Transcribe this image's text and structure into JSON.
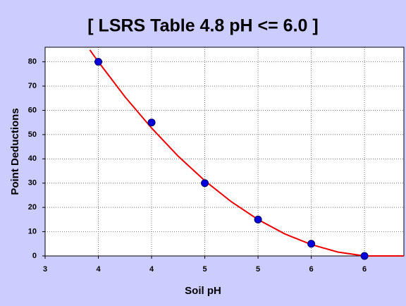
{
  "chart_data": {
    "type": "scatter",
    "title": "[ LSRS Table 4.8 pH <= 6.0 ]",
    "x_label": "Soil pH",
    "y_label": "Point Deductions",
    "xlim": [
      3,
      6.37
    ],
    "ylim": [
      0,
      86
    ],
    "xticks": [
      3,
      {
        "value": 3.5,
        "label": "4"
      },
      {
        "value": 4.0,
        "label": "4"
      },
      {
        "value": 4.5,
        "label": "5"
      },
      {
        "value": 5.0,
        "label": "5"
      },
      {
        "value": 5.5,
        "label": "6"
      },
      {
        "value": 6.0,
        "label": "6"
      }
    ],
    "yticks": [
      0,
      10,
      20,
      30,
      40,
      50,
      60,
      70,
      80
    ],
    "grid": true,
    "series": [
      {
        "type": "line",
        "color": "#ee0000",
        "x": [
          3.42,
          3.5,
          3.75,
          4.0,
          4.25,
          4.5,
          4.75,
          5.0,
          5.25,
          5.5,
          5.75,
          6.0,
          6.37
        ],
        "values": [
          84.9,
          80,
          65.6,
          52.7,
          41.1,
          31.0,
          22.3,
          15,
          9.1,
          4.7,
          1.6,
          0,
          0
        ]
      },
      {
        "type": "scatter",
        "color": "#0000dd",
        "x": [
          3.5,
          4.0,
          4.5,
          5.0,
          5.5,
          6.0
        ],
        "values": [
          80,
          55,
          30,
          15,
          5,
          0
        ]
      }
    ]
  }
}
